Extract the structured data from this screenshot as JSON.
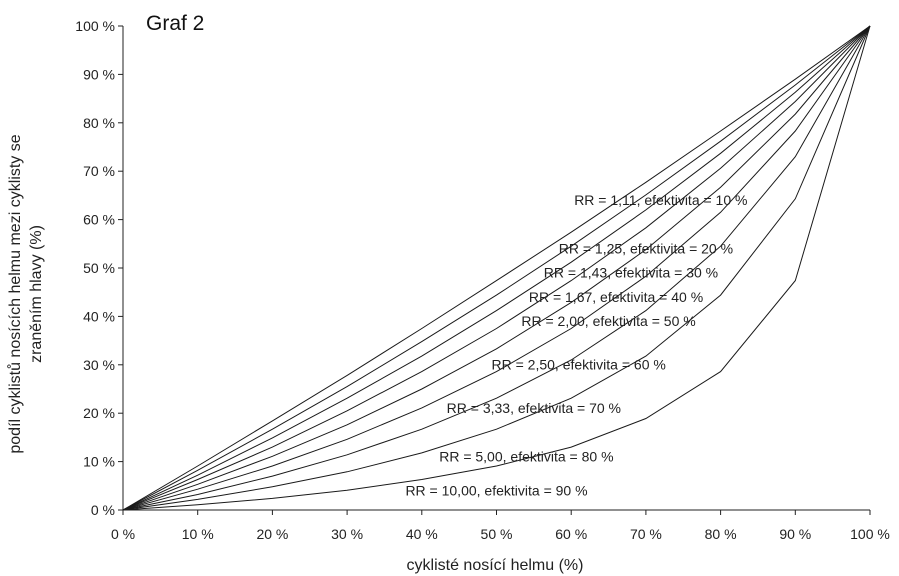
{
  "chart_data": {
    "type": "line",
    "title": "Graf 2",
    "xlabel": "cyklisté nosící helmu (%)",
    "ylabel_lines": [
      "podíl cyklistů nosících helmu mezi cyklisty se",
      "zraněním hlavy (%)"
    ],
    "xlim": [
      0,
      100
    ],
    "ylim": [
      0,
      100
    ],
    "x_ticks": [
      "0 %",
      "10 %",
      "20 %",
      "30 %",
      "40 %",
      "50 %",
      "60 %",
      "70 %",
      "80 %",
      "90 %",
      "100 %"
    ],
    "y_ticks": [
      "0 %",
      "10 %",
      "20 %",
      "30 %",
      "40 %",
      "50 %",
      "60 %",
      "70 %",
      "80 %",
      "90 %",
      "100 %"
    ],
    "grid": false,
    "x": [
      0,
      10,
      20,
      30,
      40,
      50,
      60,
      70,
      80,
      90,
      100
    ],
    "series": [
      {
        "name": "RR = 1,11, efektivita = 10 %",
        "values": [
          0,
          9.1,
          18.4,
          27.8,
          37.5,
          47.4,
          57.4,
          67.7,
          78.3,
          89.0,
          100
        ]
      },
      {
        "name": "RR = 1,25, efektivita = 20 %",
        "values": [
          0,
          8.2,
          16.7,
          25.5,
          34.8,
          44.4,
          54.5,
          65.1,
          76.2,
          87.8,
          100
        ]
      },
      {
        "name": "RR = 1,43, efektivita = 30 %",
        "values": [
          0,
          7.2,
          14.9,
          23.1,
          31.8,
          41.2,
          51.2,
          62.0,
          73.7,
          86.3,
          100
        ]
      },
      {
        "name": "RR = 1,67, efektivita = 40 %",
        "values": [
          0,
          6.3,
          13.0,
          20.5,
          28.6,
          37.5,
          47.4,
          58.3,
          70.6,
          84.4,
          100
        ]
      },
      {
        "name": "RR = 2,00, efektivita = 50 %",
        "values": [
          0,
          5.3,
          11.1,
          17.6,
          25.0,
          33.3,
          42.9,
          53.8,
          66.7,
          81.8,
          100
        ]
      },
      {
        "name": "RR = 2,50, efektivita = 60 %",
        "values": [
          0,
          4.3,
          9.1,
          14.6,
          21.1,
          28.6,
          37.5,
          48.3,
          61.5,
          78.3,
          100
        ]
      },
      {
        "name": "RR = 3,33, efektivita = 70 %",
        "values": [
          0,
          3.2,
          7.0,
          11.4,
          16.7,
          23.1,
          31.0,
          41.2,
          54.5,
          73.0,
          100
        ]
      },
      {
        "name": "RR = 5,00, efektivita = 80 %",
        "values": [
          0,
          2.2,
          4.8,
          7.9,
          11.8,
          16.7,
          23.1,
          31.8,
          44.4,
          64.3,
          100
        ]
      },
      {
        "name": "RR = 10,00, efektivita = 90 %",
        "values": [
          0,
          1.1,
          2.4,
          4.1,
          6.3,
          9.1,
          13.0,
          18.9,
          28.6,
          47.4,
          100
        ]
      }
    ]
  }
}
